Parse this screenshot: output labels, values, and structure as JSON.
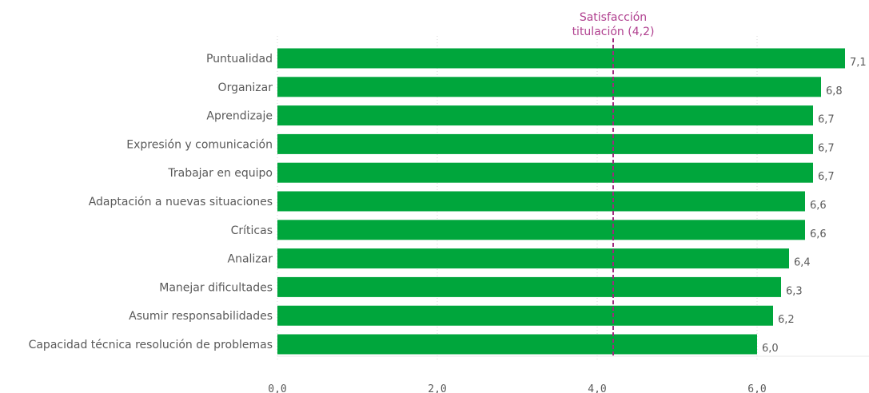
{
  "chart_data": {
    "type": "bar",
    "orientation": "horizontal",
    "categories": [
      "Puntualidad",
      "Organizar",
      "Aprendizaje",
      "Expresión y comunicación",
      "Trabajar en equipo",
      "Adaptación a nuevas situaciones",
      "Críticas",
      "Analizar",
      "Manejar dificultades",
      "Asumir responsabilidades",
      "Capacidad técnica resolución de problemas"
    ],
    "values": [
      7.1,
      6.8,
      6.7,
      6.7,
      6.7,
      6.6,
      6.6,
      6.4,
      6.3,
      6.2,
      6.0
    ],
    "value_labels": [
      "7,1",
      "6,8",
      "6,7",
      "6,7",
      "6,7",
      "6,6",
      "6,6",
      "6,4",
      "6,3",
      "6,2",
      "6,0"
    ],
    "xlim": [
      0,
      7.4
    ],
    "x_ticks": [
      0,
      2,
      4,
      6
    ],
    "x_tick_labels": [
      "0,0",
      "2,0",
      "4,0",
      "6,0"
    ],
    "grid": "vertical dotted",
    "bar_color": "#00a63c",
    "reference_line": {
      "value": 4.2,
      "label_line1": "Satisfacción",
      "label_line2": "titulación (4,2)",
      "color": "#9e2a7d",
      "style": "dashed"
    }
  }
}
